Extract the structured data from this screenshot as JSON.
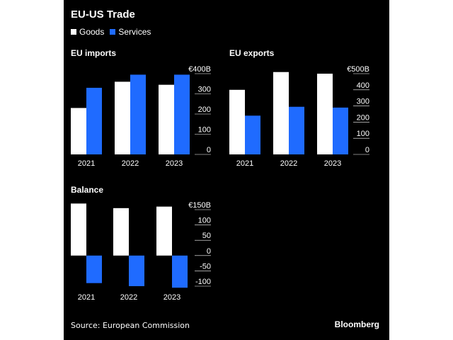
{
  "title": "EU-US Trade",
  "legend": [
    {
      "name": "Goods",
      "color": "#ffffff"
    },
    {
      "name": "Services",
      "color": "#1f6bff"
    }
  ],
  "source": "Source: European Commission",
  "brand": "Bloomberg",
  "chart_data": [
    {
      "type": "bar",
      "title": "EU imports",
      "categories": [
        "2021",
        "2022",
        "2023"
      ],
      "series": [
        {
          "name": "Goods",
          "values": [
            230,
            360,
            345
          ]
        },
        {
          "name": "Services",
          "values": [
            330,
            395,
            395
          ]
        }
      ],
      "ylim": [
        0,
        400
      ],
      "yticks": [
        0,
        100,
        200,
        300,
        400
      ],
      "ytick_labels": [
        "0",
        "100",
        "200",
        "300",
        "€400B"
      ]
    },
    {
      "type": "bar",
      "title": "EU exports",
      "categories": [
        "2021",
        "2022",
        "2023"
      ],
      "series": [
        {
          "name": "Goods",
          "values": [
            400,
            510,
            500
          ]
        },
        {
          "name": "Services",
          "values": [
            240,
            295,
            290
          ]
        }
      ],
      "ylim": [
        0,
        500
      ],
      "yticks": [
        0,
        100,
        200,
        300,
        400,
        500
      ],
      "ytick_labels": [
        "0",
        "100",
        "200",
        "300",
        "400",
        "€500B"
      ]
    },
    {
      "type": "bar",
      "title": "Balance",
      "categories": [
        "2021",
        "2022",
        "2023"
      ],
      "series": [
        {
          "name": "Goods",
          "values": [
            170,
            155,
            160
          ]
        },
        {
          "name": "Services",
          "values": [
            -90,
            -100,
            -105
          ]
        }
      ],
      "ylim": [
        -100,
        150
      ],
      "yticks": [
        -100,
        -50,
        0,
        50,
        100,
        150
      ],
      "ytick_labels": [
        "-100",
        "-50",
        "0",
        "50",
        "100",
        "€150B"
      ]
    }
  ]
}
